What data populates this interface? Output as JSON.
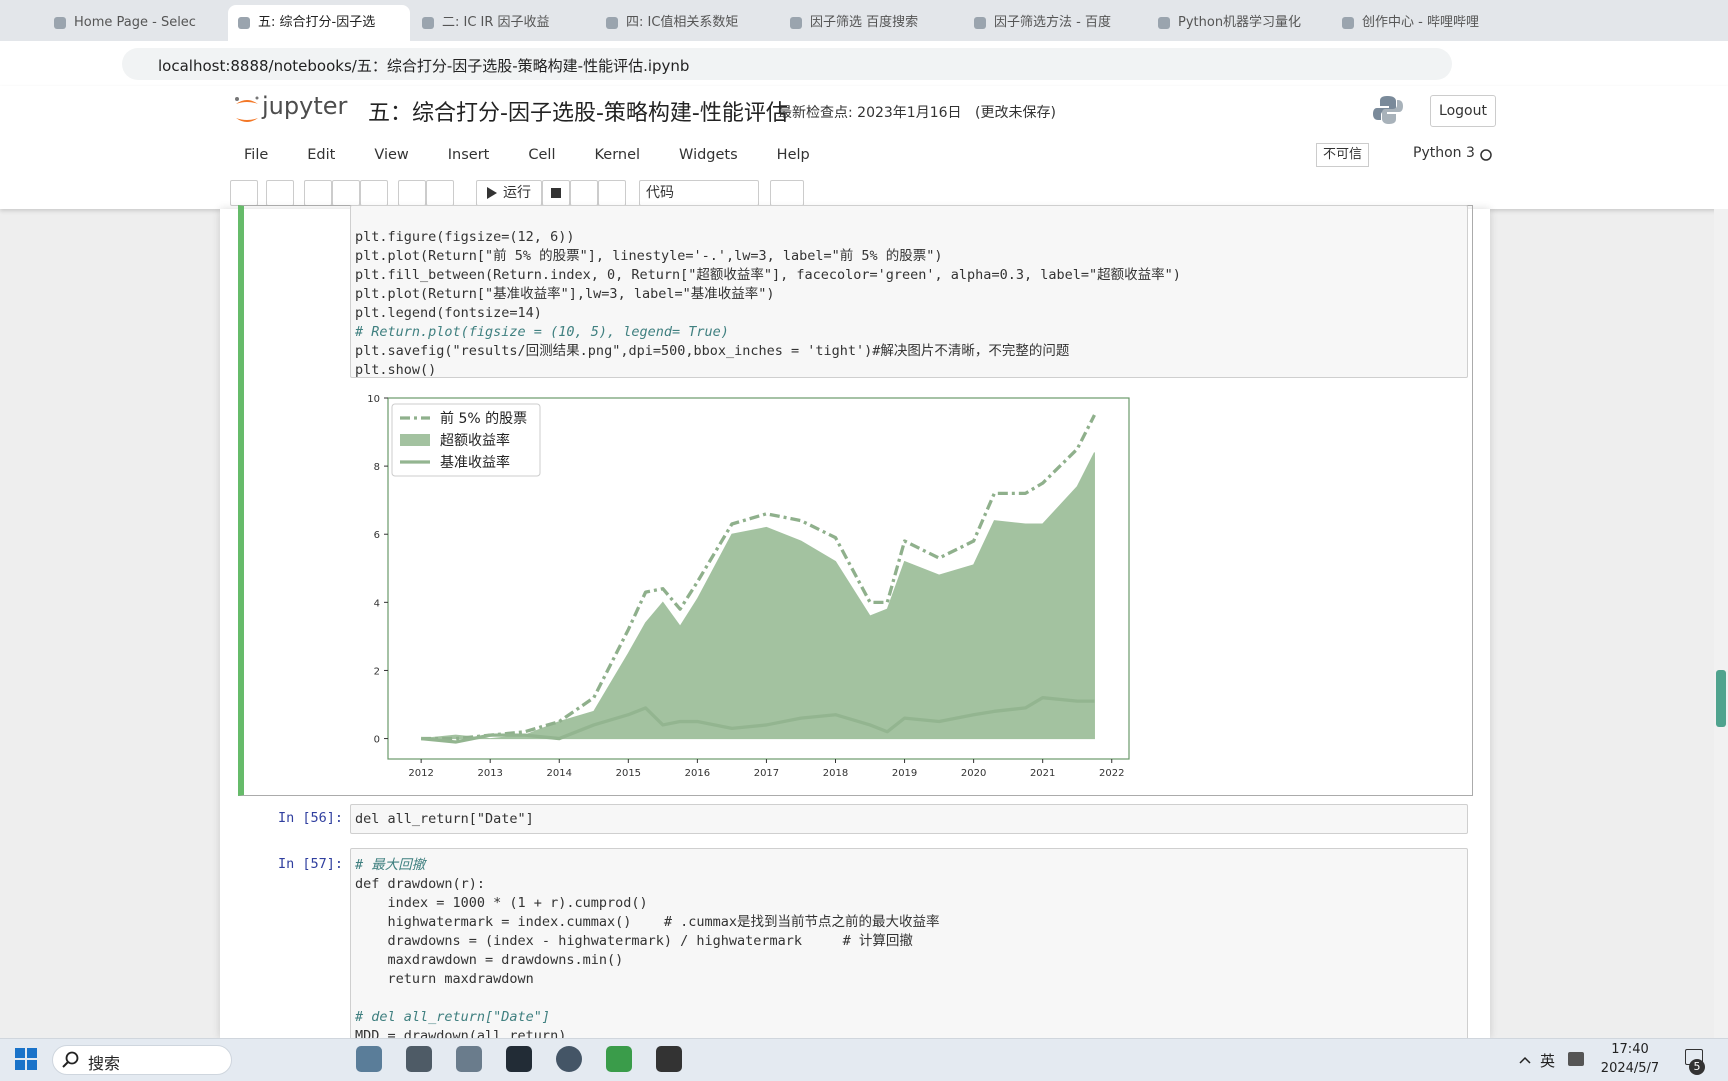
{
  "browser": {
    "tabs": [
      "Home Page - Selec",
      "五: 综合打分-因子选",
      "二: IC IR 因子收益",
      "四: IC值相关系数矩",
      "因子筛选 百度搜索",
      "因子筛选方法 - 百度",
      "Python机器学习量化",
      "创作中心 - 哔哩哔哩"
    ],
    "url": "localhost:8888/notebooks/五：综合打分-因子选股-策略构建-性能评估.ipynb"
  },
  "jupyter": {
    "logo": "jupyter",
    "title": "五：综合打分-因子选股-策略构建-性能评估",
    "checkpoint": "最新检查点: 2023年1月16日",
    "status": "(更改未保存)",
    "logout": "Logout",
    "menu": [
      "File",
      "Edit",
      "View",
      "Insert",
      "Cell",
      "Kernel",
      "Widgets",
      "Help"
    ],
    "trusted": "不可信",
    "kernel": "Python 3",
    "run": "运行",
    "cell_type": "代码"
  },
  "cells": [
    {
      "code": [
        [
          "plt.figure(figsize=(12, 6))",
          "plt.plot(Return[\"前 5% 的股票\"], linestyle='-.',lw=3, label=\"前 5% 的股票\")",
          "plt.fill_between(Return.index, 0, Return[\"超额收益率\"], facecolor='green', alpha=0.3, label=\"超额收益率\")",
          "plt.plot(Return[\"基准收益率\"],lw=3, label=\"基准收益率\")",
          "plt.legend(fontsize=14)",
          "# Return.plot(figsize = (10, 5), legend= True)",
          "plt.savefig(\"results/回测结果.png\",dpi=500,bbox_inches = 'tight')#解决图片不清晰，不完整的问题",
          "plt.show()"
        ]
      ]
    },
    {
      "prompt": "In [56]:",
      "code": [
        [
          "del all_return[\"Date\"]"
        ]
      ]
    },
    {
      "prompt": "In [57]:",
      "code": [
        [
          "# 最大回撤",
          "def drawdown(r):",
          "    index = 1000 * (1 + r).cumprod()",
          "    highwatermark = index.cummax()    # .cummax是找到当前节点之前的最大收益率",
          "    drawdowns = (index - highwatermark) / highwatermark     # 计算回撤",
          "    maxdrawdown = drawdowns.min()",
          "    return maxdrawdown"
        ],
        [
          "# del all_return[\"Date\"]",
          "MDD = drawdown(all_return)"
        ]
      ]
    }
  ],
  "chart_data": {
    "type": "line",
    "x": [
      2012,
      2012.5,
      2013,
      2013.5,
      2014,
      2014.5,
      2015,
      2015.25,
      2015.5,
      2015.75,
      2016,
      2016.5,
      2017,
      2017.5,
      2018,
      2018.5,
      2018.75,
      2019,
      2019.5,
      2020,
      2020.3,
      2020.75,
      2021,
      2021.5,
      2021.75
    ],
    "series": [
      {
        "name": "前 5% 的股票",
        "color": "#8fb08c",
        "linestyle": "-.",
        "values": [
          0,
          0,
          0.1,
          0.2,
          0.5,
          1.2,
          3.2,
          4.3,
          4.4,
          3.8,
          4.6,
          6.3,
          6.6,
          6.4,
          5.9,
          4.0,
          4.0,
          5.8,
          5.3,
          5.8,
          7.2,
          7.2,
          7.5,
          8.5,
          9.5
        ]
      },
      {
        "name": "超额收益率",
        "color": "#a3c2a0",
        "fill": true,
        "values": [
          0,
          0.1,
          0,
          0.1,
          0.5,
          0.8,
          2.5,
          3.4,
          4.0,
          3.3,
          4.1,
          6.0,
          6.2,
          5.8,
          5.2,
          3.6,
          3.8,
          5.2,
          4.8,
          5.1,
          6.4,
          6.3,
          6.3,
          7.4,
          8.4
        ]
      },
      {
        "name": "基准收益率",
        "color": "#93b590",
        "linestyle": "-",
        "values": [
          0,
          -0.1,
          0.1,
          0.1,
          0,
          0.4,
          0.7,
          0.9,
          0.4,
          0.5,
          0.5,
          0.3,
          0.4,
          0.6,
          0.7,
          0.4,
          0.2,
          0.6,
          0.5,
          0.7,
          0.8,
          0.9,
          1.2,
          1.1,
          1.1
        ]
      }
    ],
    "xlim": [
      2011.52,
      2022.25
    ],
    "ylim": [
      -0.6,
      10
    ],
    "xticks": [
      2012,
      2013,
      2014,
      2015,
      2016,
      2017,
      2018,
      2019,
      2020,
      2021,
      2022
    ],
    "yticks": [
      0,
      2,
      4,
      6,
      8,
      10
    ],
    "legend": "upper left",
    "grid": false
  },
  "taskbar": {
    "search": "搜索",
    "ime": "英",
    "time": "17:40",
    "date": "2024/5/7",
    "notifications": "5"
  }
}
